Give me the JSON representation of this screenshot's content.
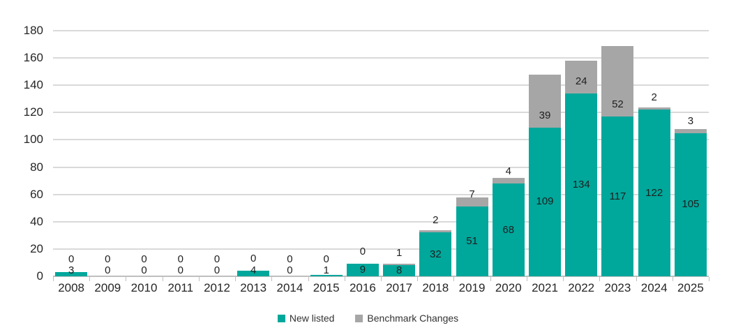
{
  "chart_data": {
    "type": "bar",
    "stacked": true,
    "title": "",
    "xlabel": "",
    "ylabel": "",
    "categories": [
      "2008",
      "2009",
      "2010",
      "2011",
      "2012",
      "2013",
      "2014",
      "2015",
      "2016",
      "2017",
      "2018",
      "2019",
      "2020",
      "2021",
      "2022",
      "2023",
      "2024",
      "2025"
    ],
    "series": [
      {
        "name": "New listed",
        "color": "#00a79b",
        "values": [
          3,
          0,
          0,
          0,
          0,
          4,
          0,
          1,
          9,
          8,
          32,
          51,
          68,
          109,
          134,
          117,
          122,
          105
        ]
      },
      {
        "name": "Benchmark Changes",
        "color": "#a6a6a6",
        "values": [
          0,
          0,
          0,
          0,
          0,
          0,
          0,
          0,
          0,
          1,
          2,
          7,
          4,
          39,
          24,
          52,
          2,
          3
        ]
      }
    ],
    "ylim": [
      0,
      180
    ],
    "ytick_interval": 20,
    "yticks": [
      0,
      20,
      40,
      60,
      80,
      100,
      120,
      140,
      160,
      180
    ],
    "grid": "horizontal",
    "gridline_color": "#d9d9d9",
    "axis_line_color": "#bfbfbf",
    "show_data_labels": true,
    "data_label_color": "#1f1f1f",
    "legend_position": "bottom"
  },
  "legend": {
    "items": [
      {
        "label": "New listed",
        "color": "#00a79b"
      },
      {
        "label": "Benchmark Changes",
        "color": "#a6a6a6"
      }
    ]
  }
}
